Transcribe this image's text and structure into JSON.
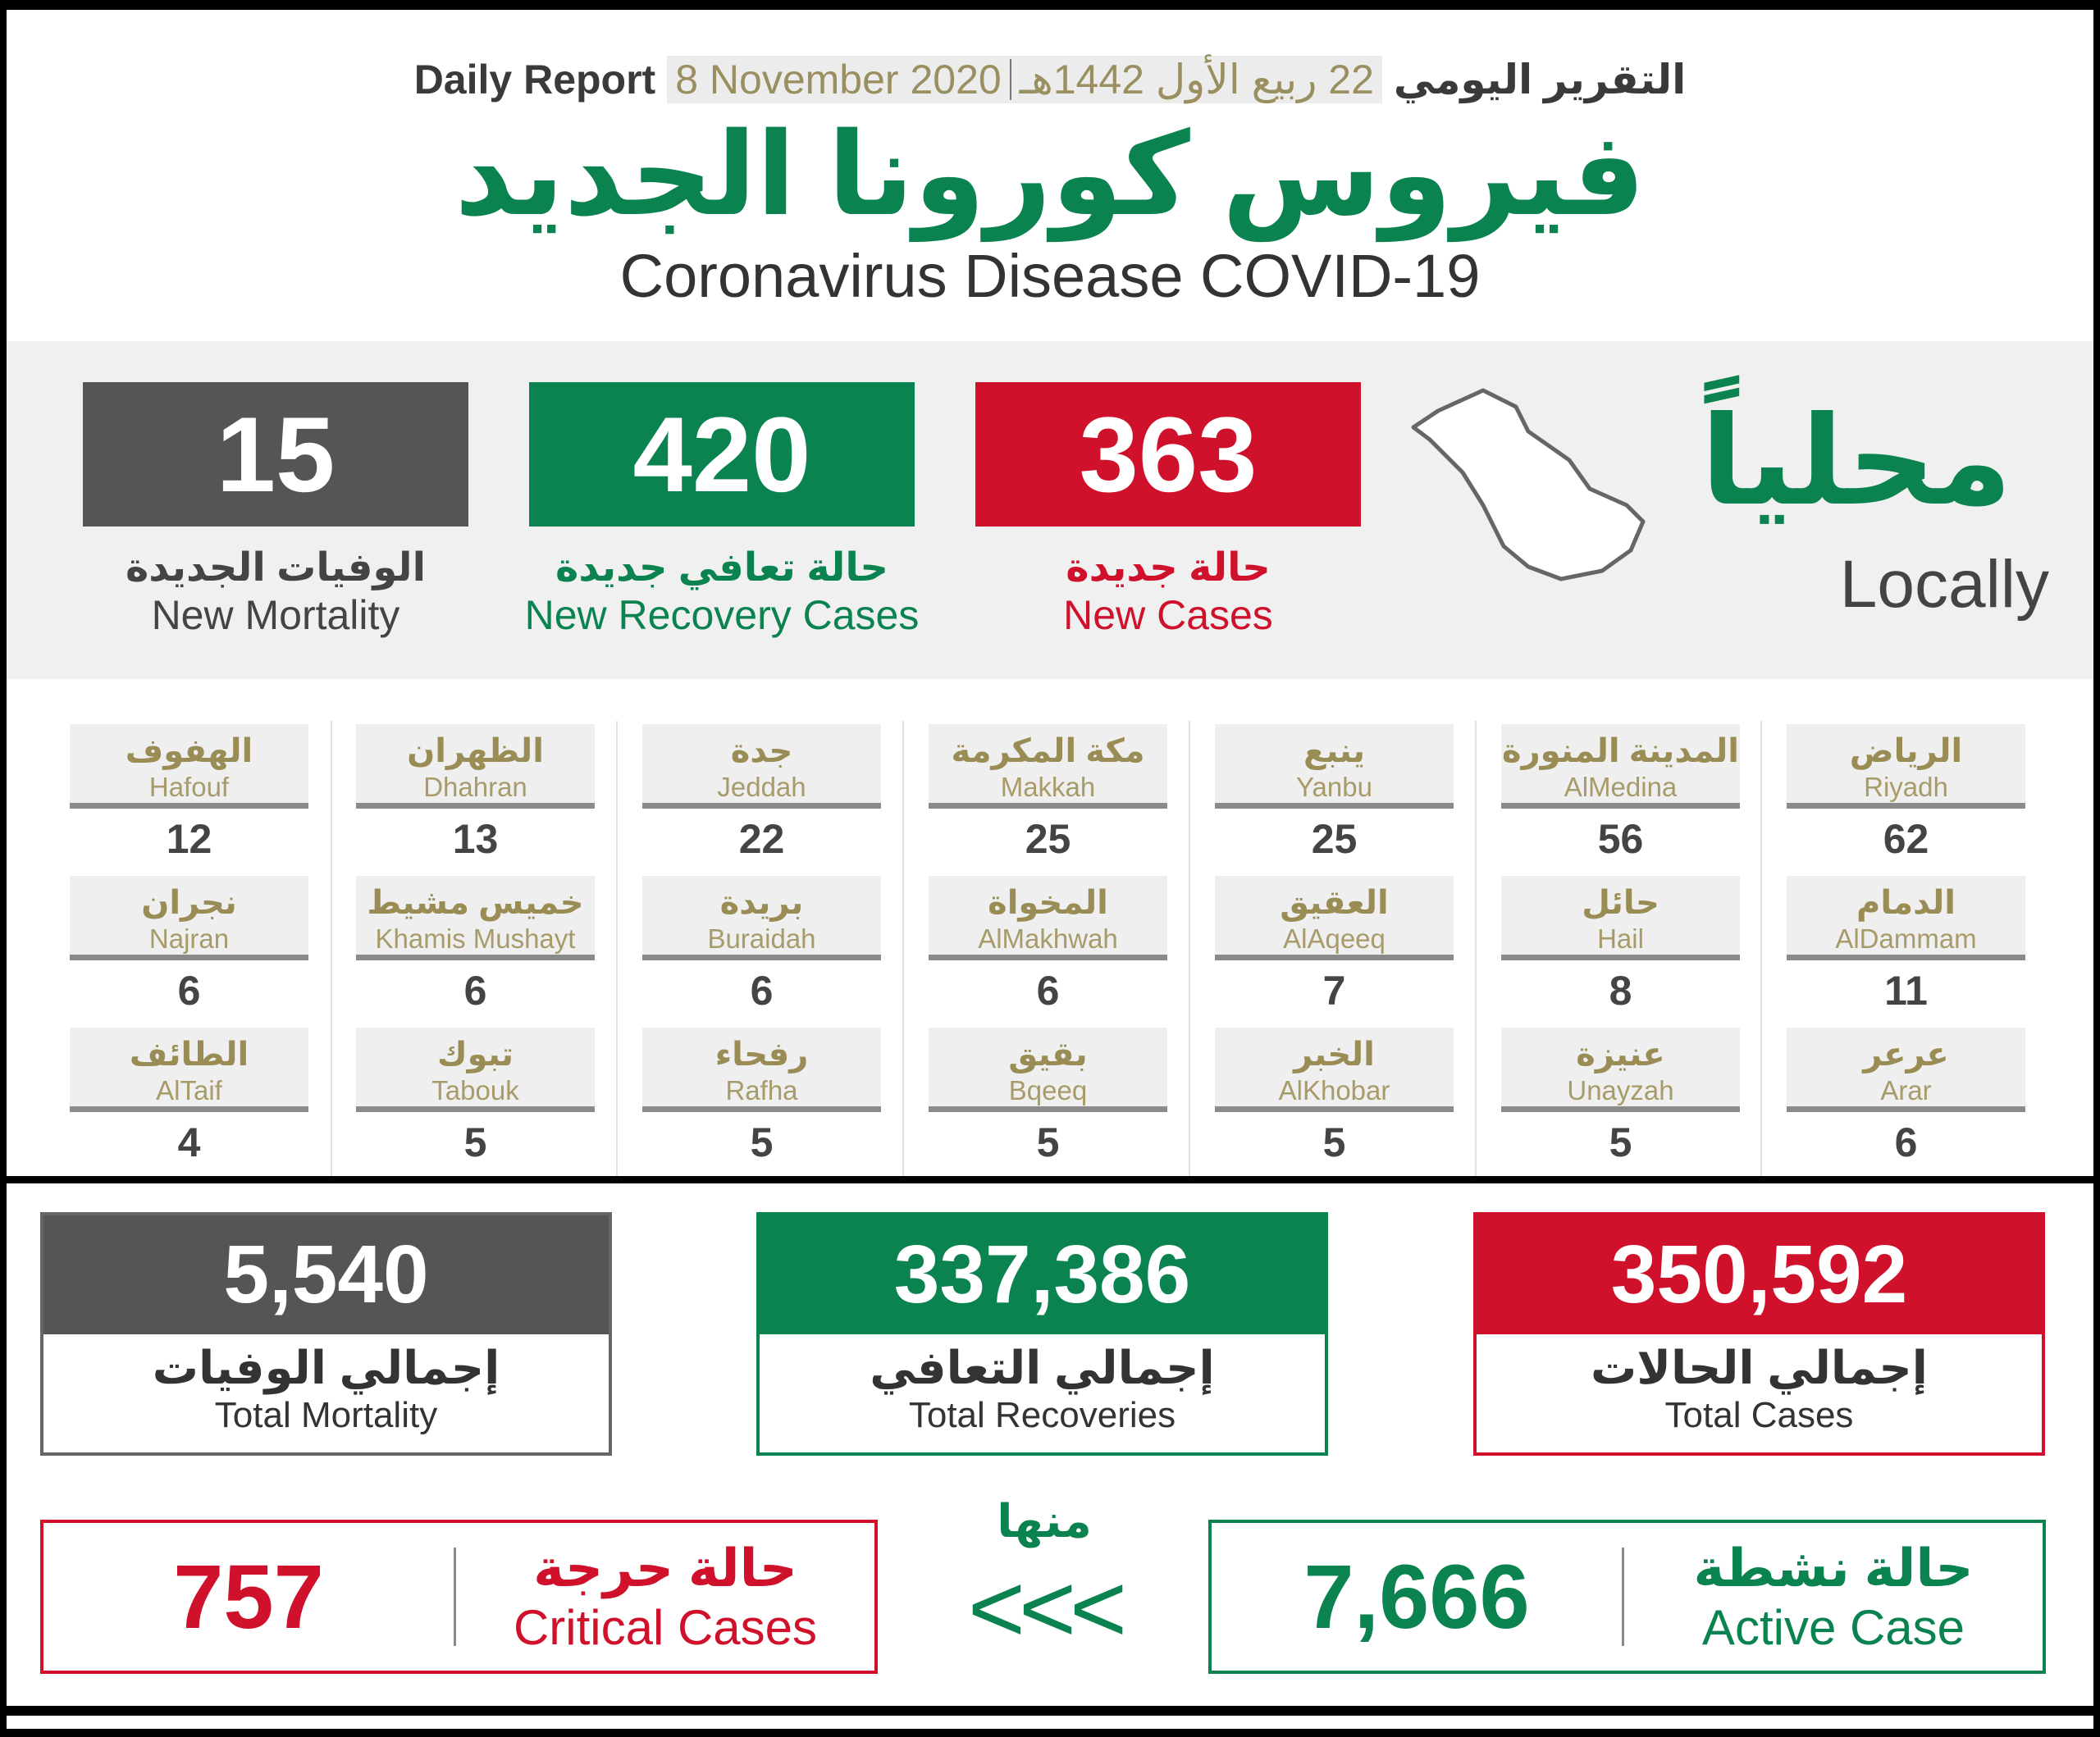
{
  "header": {
    "daily_report_en": "Daily Report",
    "date_gregorian": "8 November 2020",
    "date_hijri": "22 ربيع الأول 1442هـ",
    "daily_report_ar": "التقرير اليومي",
    "title_ar": "فيروس كورونا الجديد",
    "title_en": "Coronavirus Disease COVID-19"
  },
  "colors": {
    "red": "#d0112b",
    "green": "#0a8350",
    "gray": "#555555",
    "gold": "#9a8c55"
  },
  "locally": {
    "label_ar": "محلياً",
    "label_en": "Locally",
    "map_icon": "saudi-arabia-map-icon",
    "new_cases": {
      "value": "363",
      "label_ar": "حالة جديدة",
      "label_en": "New Cases"
    },
    "new_recovery": {
      "value": "420",
      "label_ar": "حالة تعافي جديدة",
      "label_en": "New Recovery Cases"
    },
    "new_mortality": {
      "value": "15",
      "label_ar": "الوفيات الجديدة",
      "label_en": "New Mortality"
    }
  },
  "cities": [
    [
      {
        "ar": "الرياض",
        "en": "Riyadh",
        "v": "62"
      },
      {
        "ar": "المدينة المنورة",
        "en": "AlMedina",
        "v": "56"
      },
      {
        "ar": "ينبع",
        "en": "Yanbu",
        "v": "25"
      },
      {
        "ar": "مكة المكرمة",
        "en": "Makkah",
        "v": "25"
      },
      {
        "ar": "جدة",
        "en": "Jeddah",
        "v": "22"
      },
      {
        "ar": "الظهران",
        "en": "Dhahran",
        "v": "13"
      },
      {
        "ar": "الهفوف",
        "en": "Hafouf",
        "v": "12"
      }
    ],
    [
      {
        "ar": "الدمام",
        "en": "AlDammam",
        "v": "11"
      },
      {
        "ar": "حائل",
        "en": "Hail",
        "v": "8"
      },
      {
        "ar": "العقيق",
        "en": "AlAqeeq",
        "v": "7"
      },
      {
        "ar": "المخواة",
        "en": "AlMakhwah",
        "v": "6"
      },
      {
        "ar": "بريدة",
        "en": "Buraidah",
        "v": "6"
      },
      {
        "ar": "خميس مشيط",
        "en": "Khamis Mushayt",
        "v": "6"
      },
      {
        "ar": "نجران",
        "en": "Najran",
        "v": "6"
      }
    ],
    [
      {
        "ar": "عرعر",
        "en": "Arar",
        "v": "6"
      },
      {
        "ar": "عنيزة",
        "en": "Unayzah",
        "v": "5"
      },
      {
        "ar": "الخبر",
        "en": "AlKhobar",
        "v": "5"
      },
      {
        "ar": "بقيق",
        "en": "Bqeeq",
        "v": "5"
      },
      {
        "ar": "رفحاء",
        "en": "Rafha",
        "v": "5"
      },
      {
        "ar": "تبوك",
        "en": "Tabouk",
        "v": "5"
      },
      {
        "ar": "الطائف",
        "en": "AlTaif",
        "v": "4"
      }
    ]
  ],
  "totals": {
    "cases": {
      "value": "350,592",
      "label_ar": "إجمالي الحالات",
      "label_en": "Total Cases"
    },
    "recoveries": {
      "value": "337,386",
      "label_ar": "إجمالي التعافي",
      "label_en": "Total Recoveries"
    },
    "mortality": {
      "value": "5,540",
      "label_ar": "إجمالي الوفيات",
      "label_en": "Total Mortality"
    }
  },
  "of_which": "منها",
  "arrows": "<<<",
  "active": {
    "value": "7,666",
    "label_ar": "حالة نشطة",
    "label_en": "Active Case"
  },
  "critical": {
    "value": "757",
    "label_ar": "حالة حرجة",
    "label_en": "Critical Cases"
  }
}
